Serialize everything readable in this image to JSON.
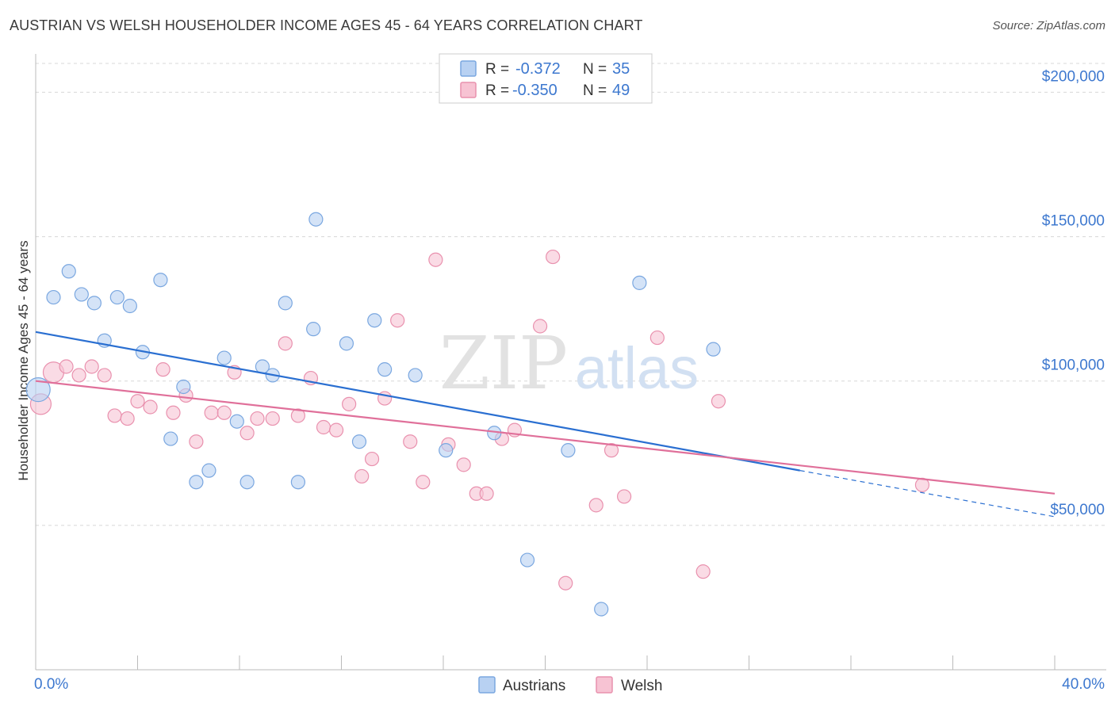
{
  "header": {
    "title": "AUSTRIAN VS WELSH HOUSEHOLDER INCOME AGES 45 - 64 YEARS CORRELATION CHART",
    "source": "Source: ZipAtlas.com"
  },
  "watermark": {
    "zip": "ZIP",
    "atlas": "atlas"
  },
  "stats_legend": [
    {
      "r_label": "R =",
      "r_value": "-0.372",
      "n_label": "N =",
      "n_value": "35"
    },
    {
      "r_label": "R =",
      "r_value": "-0.350",
      "n_label": "N =",
      "n_value": "49"
    }
  ],
  "bottom_legend": [
    {
      "label": "Austrians"
    },
    {
      "label": "Welsh"
    }
  ],
  "colors": {
    "austrians_fill": "#b8d1f2",
    "austrians_stroke": "#7aa7e0",
    "austrians_line": "#2a6fd1",
    "welsh_fill": "#f7c3d3",
    "welsh_stroke": "#e991ae",
    "welsh_line": "#e0709a",
    "axis_value": "#3d78cf",
    "grid": "#d8d8d8"
  },
  "chart_data": {
    "type": "scatter",
    "title": "AUSTRIAN VS WELSH HOUSEHOLDER INCOME AGES 45 - 64 YEARS CORRELATION CHART",
    "xlabel": "",
    "ylabel": "Householder Income Ages 45 - 64 years",
    "xlim": [
      0,
      40
    ],
    "ylim": [
      0,
      210000
    ],
    "x_tick_labels": [
      "0.0%",
      "40.0%"
    ],
    "y_ticks": [
      50000,
      100000,
      150000,
      200000
    ],
    "y_tick_labels": [
      "$50,000",
      "$100,000",
      "$150,000",
      "$200,000"
    ],
    "grid": true,
    "legend_position": "top-center",
    "series": [
      {
        "name": "Austrians",
        "points": [
          [
            0.1,
            97000
          ],
          [
            0.7,
            129000
          ],
          [
            1.3,
            138000
          ],
          [
            1.8,
            130000
          ],
          [
            2.3,
            127000
          ],
          [
            2.7,
            114000
          ],
          [
            3.2,
            129000
          ],
          [
            3.7,
            126000
          ],
          [
            4.2,
            110000
          ],
          [
            4.9,
            135000
          ],
          [
            5.3,
            80000
          ],
          [
            5.8,
            98000
          ],
          [
            6.3,
            65000
          ],
          [
            6.8,
            69000
          ],
          [
            7.4,
            108000
          ],
          [
            7.9,
            86000
          ],
          [
            8.3,
            65000
          ],
          [
            8.9,
            105000
          ],
          [
            9.3,
            102000
          ],
          [
            9.8,
            127000
          ],
          [
            10.3,
            65000
          ],
          [
            10.9,
            118000
          ],
          [
            11.0,
            156000
          ],
          [
            12.2,
            113000
          ],
          [
            12.7,
            79000
          ],
          [
            13.3,
            121000
          ],
          [
            13.7,
            104000
          ],
          [
            14.9,
            102000
          ],
          [
            16.1,
            76000
          ],
          [
            18.0,
            82000
          ],
          [
            19.3,
            38000
          ],
          [
            20.9,
            76000
          ],
          [
            22.2,
            21000
          ],
          [
            23.7,
            134000
          ],
          [
            26.6,
            111000
          ]
        ]
      },
      {
        "name": "Welsh",
        "points": [
          [
            0.2,
            92000
          ],
          [
            0.7,
            103000
          ],
          [
            1.2,
            105000
          ],
          [
            1.7,
            102000
          ],
          [
            2.2,
            105000
          ],
          [
            2.7,
            102000
          ],
          [
            3.1,
            88000
          ],
          [
            3.6,
            87000
          ],
          [
            4.0,
            93000
          ],
          [
            4.5,
            91000
          ],
          [
            5.0,
            104000
          ],
          [
            5.4,
            89000
          ],
          [
            5.9,
            95000
          ],
          [
            6.3,
            79000
          ],
          [
            6.9,
            89000
          ],
          [
            7.4,
            89000
          ],
          [
            7.8,
            103000
          ],
          [
            8.3,
            82000
          ],
          [
            8.7,
            87000
          ],
          [
            9.3,
            87000
          ],
          [
            9.8,
            113000
          ],
          [
            10.3,
            88000
          ],
          [
            10.8,
            101000
          ],
          [
            11.3,
            84000
          ],
          [
            11.8,
            83000
          ],
          [
            12.3,
            92000
          ],
          [
            12.8,
            67000
          ],
          [
            13.2,
            73000
          ],
          [
            13.7,
            94000
          ],
          [
            14.2,
            121000
          ],
          [
            14.7,
            79000
          ],
          [
            15.2,
            65000
          ],
          [
            15.7,
            142000
          ],
          [
            16.2,
            78000
          ],
          [
            16.8,
            71000
          ],
          [
            17.3,
            61000
          ],
          [
            17.7,
            61000
          ],
          [
            18.3,
            80000
          ],
          [
            18.8,
            83000
          ],
          [
            19.8,
            119000
          ],
          [
            20.3,
            143000
          ],
          [
            20.8,
            30000
          ],
          [
            22.0,
            57000
          ],
          [
            22.6,
            76000
          ],
          [
            23.1,
            60000
          ],
          [
            24.4,
            115000
          ],
          [
            26.2,
            34000
          ],
          [
            26.8,
            93000
          ],
          [
            34.8,
            64000
          ]
        ]
      }
    ],
    "trend_lines": [
      {
        "series": "Austrians",
        "start": [
          0,
          117000
        ],
        "solid_end": [
          30,
          69000
        ],
        "dashed_end": [
          40,
          53000
        ]
      },
      {
        "series": "Welsh",
        "start": [
          0,
          100000
        ],
        "end": [
          40,
          61000
        ]
      }
    ]
  }
}
